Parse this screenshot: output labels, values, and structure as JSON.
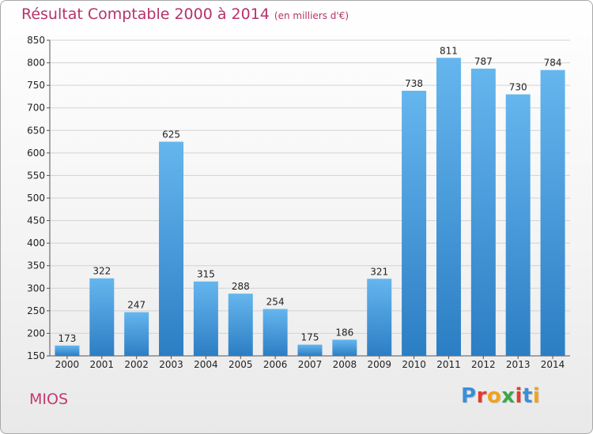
{
  "title": "Résultat Comptable 2000 à 2014",
  "subtitle": "(en milliers d'€)",
  "commune": "MIOS",
  "logo_letters": [
    "P",
    "r",
    "o",
    "x",
    "i",
    "t",
    "i"
  ],
  "logo_colors": [
    "#3a8fd6",
    "#e23b2e",
    "#f2a21b",
    "#3aa847",
    "#e23b2e",
    "#3a8fd6",
    "#f2a21b"
  ],
  "colors": {
    "bar_light": "#65b6ee",
    "bar_dark": "#2c7ec4",
    "title": "#b5326a",
    "grid": "#d2d2d2"
  },
  "chart_data": {
    "type": "bar",
    "title": "Résultat Comptable 2000 à 2014",
    "subtitle": "(en milliers d'€)",
    "categories": [
      "2000",
      "2001",
      "2002",
      "2003",
      "2004",
      "2005",
      "2006",
      "2007",
      "2008",
      "2009",
      "2010",
      "2011",
      "2012",
      "2013",
      "2014"
    ],
    "values": [
      173,
      322,
      247,
      625,
      315,
      288,
      254,
      175,
      186,
      321,
      738,
      811,
      787,
      730,
      784
    ],
    "ylim": [
      150,
      850
    ],
    "yticks": [
      150,
      200,
      250,
      300,
      350,
      400,
      450,
      500,
      550,
      600,
      650,
      700,
      750,
      800,
      850
    ],
    "grid": true,
    "legend": "none"
  }
}
